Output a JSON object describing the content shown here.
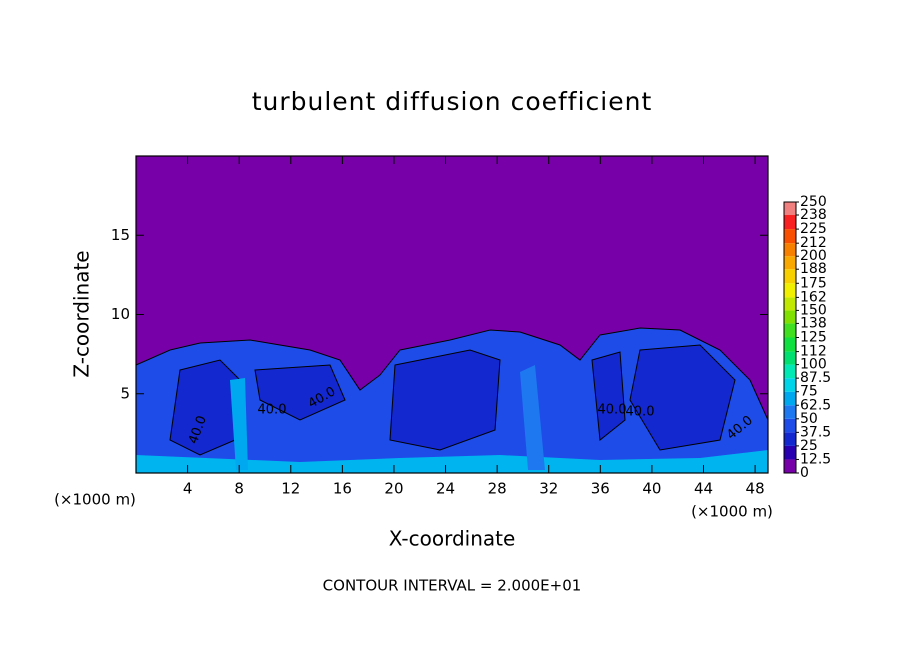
{
  "chart_data": {
    "type": "contour",
    "title": "turbulent diffusion coefficient",
    "x_label": "X-coordinate",
    "y_label": "Z-coordinate",
    "x_unit": "(×1000 m)",
    "y_unit": "(×1000 m)",
    "footnote": "CONTOUR INTERVAL = 2.000E+01",
    "xlim": [
      0,
      49
    ],
    "xticks": [
      4,
      8,
      12,
      16,
      20,
      24,
      28,
      32,
      36,
      40,
      44,
      48
    ],
    "ylim": [
      0,
      20
    ],
    "yticks": [
      5,
      10,
      15
    ],
    "contour_labels": [
      "40.0",
      "40.0",
      "40.0",
      "40.0",
      "40.0",
      "40.0"
    ],
    "colorbar": {
      "levels": [
        0,
        12.5,
        25,
        37.5,
        50,
        62.5,
        75,
        87.5,
        100,
        112,
        125,
        138,
        150,
        162,
        175,
        188,
        200,
        212,
        225,
        238,
        250
      ],
      "colors": [
        "#7800a8",
        "#2800b0",
        "#1428d0",
        "#1e4ce8",
        "#1e78f0",
        "#00a8f0",
        "#00d4e8",
        "#00e8b4",
        "#00e070",
        "#10e040",
        "#40e020",
        "#80e000",
        "#c0e800",
        "#f0f000",
        "#f8d000",
        "#f8a800",
        "#f88000",
        "#f85000",
        "#f82020",
        "#f08080"
      ]
    }
  }
}
